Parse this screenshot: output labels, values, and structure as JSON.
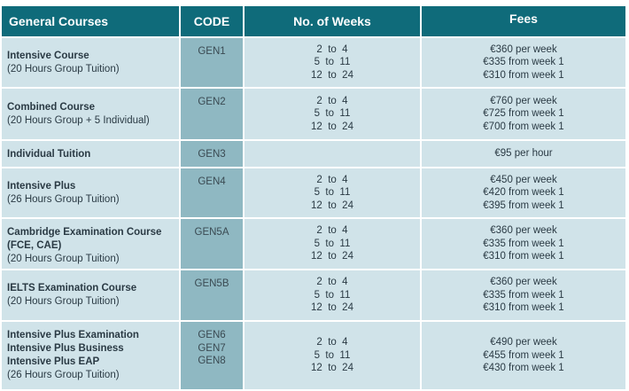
{
  "header": {
    "col1": "General Courses",
    "col2": "CODE",
    "col3": "No. of Weeks",
    "col4": "Fees"
  },
  "rows": [
    {
      "titles": [
        "Intensive Course"
      ],
      "sub": "(20 Hours Group Tuition)",
      "codes": [
        "GEN1"
      ],
      "weeks": [
        "2  to  4",
        "5  to  11",
        "12  to  24"
      ],
      "fees": [
        "€360 per week",
        "€335 from week 1",
        "€310 from week 1"
      ]
    },
    {
      "titles": [
        "Combined Course"
      ],
      "sub": "(20 Hours Group + 5 Individual)",
      "codes": [
        "GEN2"
      ],
      "weeks": [
        "2  to  4",
        "5  to  11",
        "12  to  24"
      ],
      "fees": [
        "€760 per week",
        "€725 from week 1",
        "€700 from week 1"
      ]
    },
    {
      "titles": [
        "Individual Tuition"
      ],
      "sub": "",
      "codes": [
        "GEN3"
      ],
      "weeks": [],
      "fees": [
        "€95 per hour"
      ]
    },
    {
      "titles": [
        "Intensive Plus"
      ],
      "sub": "(26 Hours Group Tuition)",
      "codes": [
        "GEN4"
      ],
      "weeks": [
        "2  to  4",
        "5  to  11",
        "12  to  24"
      ],
      "fees": [
        "€450 per week",
        "€420 from week 1",
        "€395 from week 1"
      ]
    },
    {
      "titles": [
        "Cambridge Examination Course",
        "(FCE, CAE)"
      ],
      "sub": "(20 Hours Group Tuition)",
      "codes": [
        "GEN5A"
      ],
      "weeks": [
        "2  to  4",
        "5  to  11",
        "12  to  24"
      ],
      "fees": [
        "€360 per week",
        "€335 from week 1",
        "€310 from week 1"
      ]
    },
    {
      "titles": [
        "IELTS Examination Course"
      ],
      "sub": "(20 Hours Group Tuition)",
      "codes": [
        "GEN5B"
      ],
      "weeks": [
        "2  to  4",
        "5  to  11",
        "12  to  24"
      ],
      "fees": [
        "€360 per week",
        "€335 from week 1",
        "€310 from week 1"
      ]
    },
    {
      "titles": [
        "Intensive Plus Examination",
        "Intensive Plus Business",
        "Intensive Plus EAP"
      ],
      "sub": "(26 Hours Group Tuition)",
      "codes": [
        "GEN6",
        "GEN7",
        "GEN8"
      ],
      "weeks": [
        "2  to  4",
        "5  to  11",
        "12  to  24"
      ],
      "fees": [
        "€490 per week",
        "€455 from week 1",
        "€430 from week 1"
      ]
    }
  ]
}
